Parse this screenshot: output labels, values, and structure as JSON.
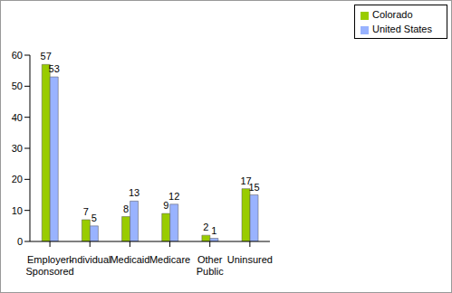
{
  "chart_data": {
    "type": "bar",
    "categories": [
      "Employer-Sponsored",
      "Individual",
      "Medicaid",
      "Medicare",
      "Other Public",
      "Uninsured"
    ],
    "series": [
      {
        "name": "Colorado",
        "color": "#99cc00",
        "values": [
          57,
          7,
          8,
          9,
          2,
          17
        ]
      },
      {
        "name": "United States",
        "color": "#99b3ff",
        "values": [
          53,
          5,
          13,
          12,
          1,
          15
        ]
      }
    ],
    "ylim": [
      0,
      60
    ],
    "yticks": [
      0,
      10,
      20,
      30,
      40,
      50,
      60
    ],
    "grid": false,
    "legend": "top-right",
    "data_labels": true
  }
}
